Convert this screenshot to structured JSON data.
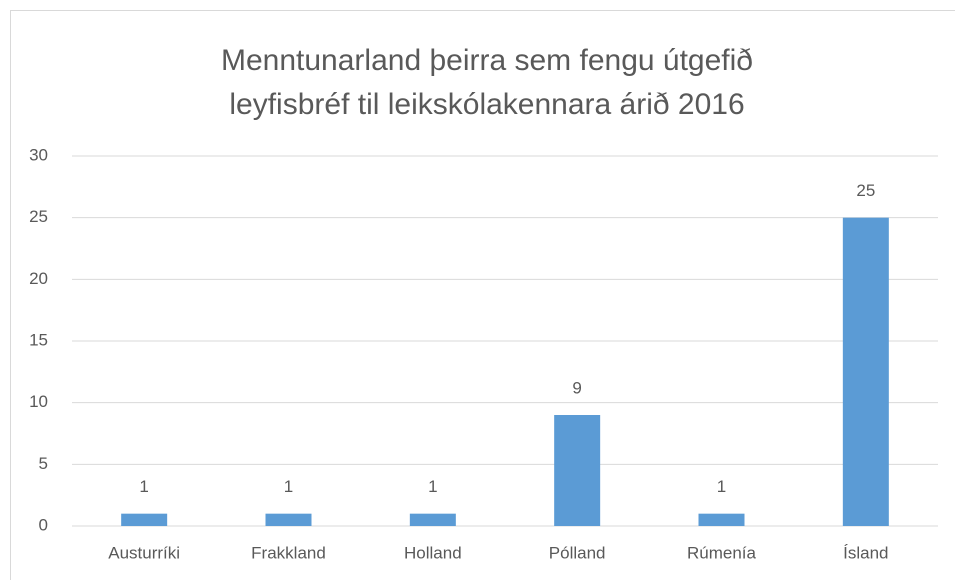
{
  "chart_data": {
    "type": "bar",
    "title": [
      "Menntunarland þeirra sem fengu útgefið",
      "leyfisbréf til leikskólakennara árið 2016"
    ],
    "categories": [
      "Austurríki",
      "Frakkland",
      "Holland",
      "Pólland",
      "Rúmenía",
      "Ísland"
    ],
    "values": [
      1,
      1,
      1,
      9,
      1,
      25
    ],
    "color": "#5b9bd5",
    "ylim": [
      0,
      30
    ],
    "yticks": [
      0,
      5,
      10,
      15,
      20,
      25,
      30
    ],
    "grid": true,
    "data_labels": true
  }
}
